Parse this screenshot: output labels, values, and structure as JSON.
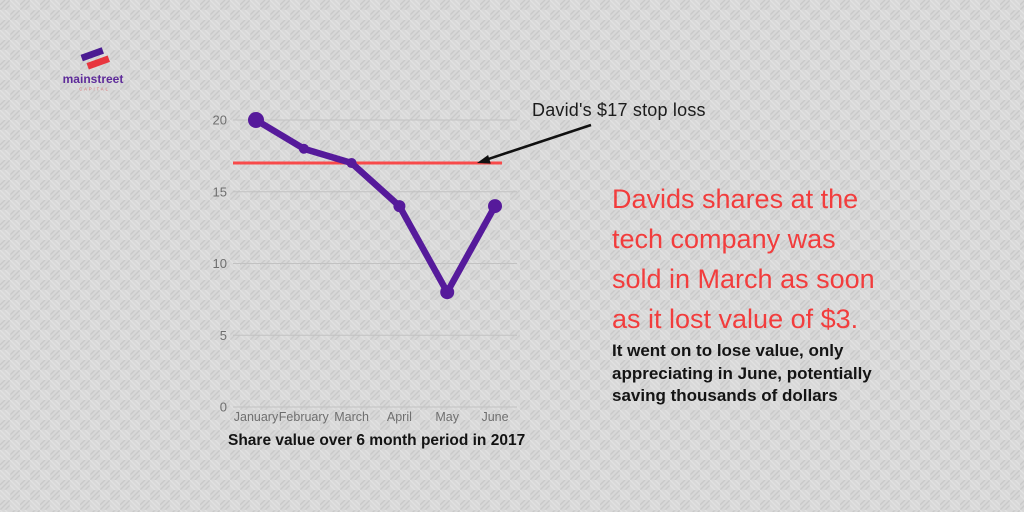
{
  "logo": {
    "name": "mainstreet",
    "subtitle": "CAPITAL",
    "mark_purple": "#4b1b92",
    "mark_red": "#e8363f",
    "text_color": "#5e2b9a",
    "subtitle_color": "#d66a6a"
  },
  "annotation": {
    "label": "David's $17 stop loss"
  },
  "callout": {
    "headline_lines": [
      "Davids shares at the",
      "tech company was",
      "sold in March as soon",
      "as it lost value of $3."
    ],
    "subtext_lines": [
      "It went on to lose value, only",
      "appreciating in June, potentially",
      "saving thousands of dollars"
    ]
  },
  "colors": {
    "series_line": "#561a9b",
    "stop_loss_line": "#f84a4a",
    "grid_line": "#c2c2c2",
    "axis_text": "#6f6f6f",
    "headline_red": "#f23d3d",
    "body_black": "#141414"
  },
  "chart_data": {
    "type": "line",
    "title": "Share value over 6 month period in 2017",
    "x_labels": [
      "January",
      "February",
      "March",
      "April",
      "May",
      "June"
    ],
    "series": [
      {
        "name": "Share value",
        "values": [
          20,
          18,
          17,
          14,
          8,
          14
        ]
      }
    ],
    "stop_loss": {
      "label": "David's $17 stop loss",
      "value": 17
    },
    "ylim": [
      0,
      20
    ],
    "yticks": [
      0,
      5,
      10,
      15,
      20
    ],
    "grid": true,
    "legend": "none",
    "xlabel": "",
    "ylabel": ""
  }
}
